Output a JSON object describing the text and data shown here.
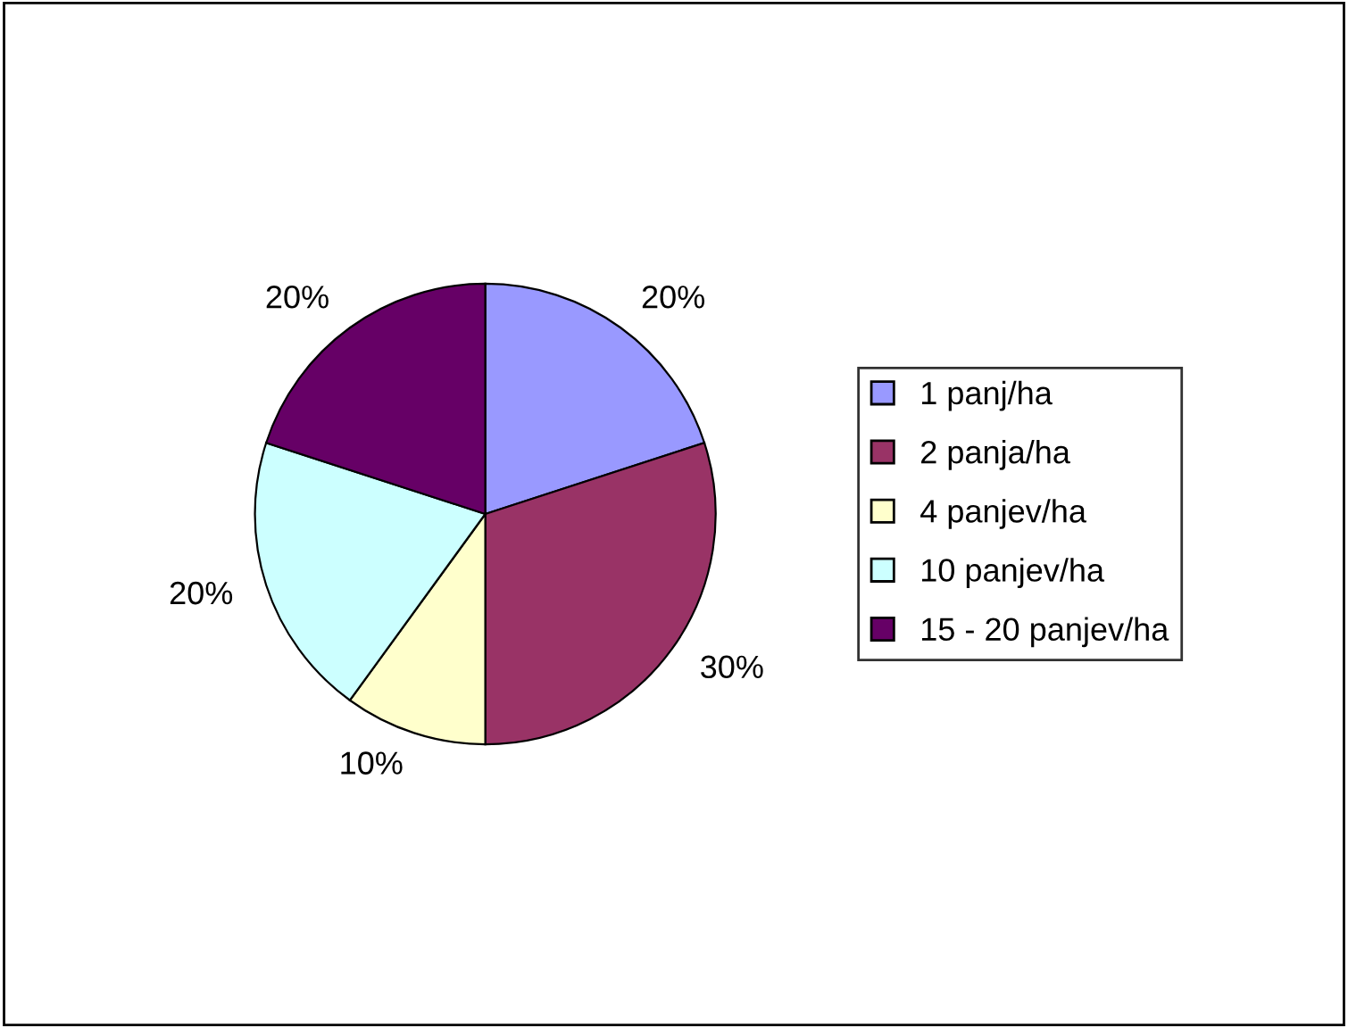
{
  "chart_data": {
    "type": "pie",
    "categories": [
      "1 panj/ha",
      "2 panja/ha",
      "4 panjev/ha",
      "10 panjev/ha",
      "15 - 20 panjev/ha"
    ],
    "values": [
      20,
      30,
      10,
      20,
      20
    ],
    "colors": [
      "#9999ff",
      "#993366",
      "#ffffcc",
      "#ccffff",
      "#660066"
    ],
    "value_labels": [
      "20%",
      "30%",
      "10%",
      "20%",
      "20%"
    ],
    "legend": "right"
  }
}
